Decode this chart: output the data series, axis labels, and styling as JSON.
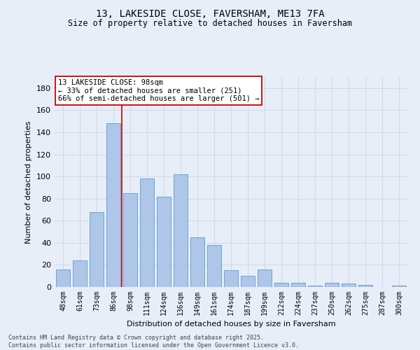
{
  "title": "13, LAKESIDE CLOSE, FAVERSHAM, ME13 7FA",
  "subtitle": "Size of property relative to detached houses in Faversham",
  "xlabel": "Distribution of detached houses by size in Faversham",
  "ylabel": "Number of detached properties",
  "categories": [
    "48sqm",
    "61sqm",
    "73sqm",
    "86sqm",
    "98sqm",
    "111sqm",
    "124sqm",
    "136sqm",
    "149sqm",
    "161sqm",
    "174sqm",
    "187sqm",
    "199sqm",
    "212sqm",
    "224sqm",
    "237sqm",
    "250sqm",
    "262sqm",
    "275sqm",
    "287sqm",
    "300sqm"
  ],
  "values": [
    16,
    24,
    68,
    148,
    85,
    98,
    82,
    102,
    45,
    38,
    15,
    10,
    16,
    4,
    4,
    1,
    4,
    3,
    2,
    0,
    1
  ],
  "bar_color": "#aec6e8",
  "bar_edge_color": "#5b9bd5",
  "grid_color": "#d0d8e8",
  "background_color": "#e8eef8",
  "vline_x_index": 4,
  "vline_color": "#cc0000",
  "annotation_text": "13 LAKESIDE CLOSE: 98sqm\n← 33% of detached houses are smaller (251)\n66% of semi-detached houses are larger (501) →",
  "annotation_box_color": "#ffffff",
  "annotation_box_edge": "#cc0000",
  "ylim": [
    0,
    190
  ],
  "yticks": [
    0,
    20,
    40,
    60,
    80,
    100,
    120,
    140,
    160,
    180
  ],
  "footnote": "Contains HM Land Registry data © Crown copyright and database right 2025.\nContains public sector information licensed under the Open Government Licence v3.0.",
  "title_fontsize": 10,
  "subtitle_fontsize": 8.5,
  "axis_label_fontsize": 8,
  "tick_fontsize": 7,
  "annotation_fontsize": 7.5,
  "footnote_fontsize": 6
}
